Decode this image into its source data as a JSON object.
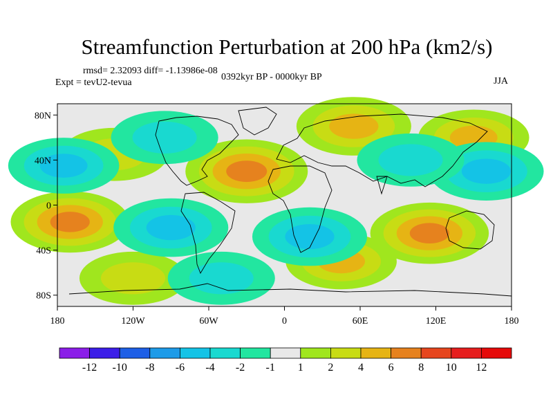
{
  "header": {
    "title": "Streamfunction Perturbation at 200 hPa (km2/s)",
    "stats": "rmsd= 2.32093 diff= -1.13986e-08",
    "experiment": "Expt = tevU2-tevua",
    "period": "0392kyr BP - 0000kyr BP",
    "season": "JJA"
  },
  "chart_data": {
    "type": "heatmap",
    "title": "Streamfunction Perturbation at 200 hPa (km2/s)",
    "xlabel": "",
    "ylabel": "",
    "x_range": [
      -180,
      180
    ],
    "y_range": [
      -90,
      90
    ],
    "x_ticks": [
      -180,
      -120,
      -60,
      0,
      60,
      120,
      180
    ],
    "x_tick_labels": [
      "180",
      "120W",
      "60W",
      "0",
      "60E",
      "120E",
      "180"
    ],
    "y_ticks": [
      80,
      40,
      0,
      -40,
      -80
    ],
    "y_tick_labels": [
      "80N",
      "40N",
      "0",
      "40S",
      "80S"
    ],
    "colorbar": {
      "levels": [
        -12,
        -10,
        -8,
        -6,
        -4,
        -2,
        -1,
        1,
        2,
        4,
        6,
        8,
        10,
        12
      ],
      "labels": [
        "-12",
        "-10",
        "-8",
        "-6",
        "-4",
        "-2",
        "-1",
        "1",
        "2",
        "4",
        "6",
        "8",
        "10",
        "12"
      ],
      "colors": [
        "#8b1ee8",
        "#3c1ee8",
        "#1e5fe6",
        "#1e9be8",
        "#14c3e6",
        "#19d9d0",
        "#22e6a0",
        "#e8e8e8",
        "#a0e61e",
        "#c8dc14",
        "#e6b414",
        "#e6821e",
        "#e6461e",
        "#e61e1e",
        "#e60a0a"
      ]
    },
    "field_features": [
      {
        "lon": -30,
        "lat": 30,
        "value": 7,
        "kind": "high"
      },
      {
        "lon": -170,
        "lat": -15,
        "value": 6,
        "kind": "high"
      },
      {
        "lon": 115,
        "lat": -25,
        "value": 6,
        "kind": "high"
      },
      {
        "lon": 55,
        "lat": 70,
        "value": 5,
        "kind": "high"
      },
      {
        "lon": 150,
        "lat": 60,
        "value": 4,
        "kind": "high"
      },
      {
        "lon": 45,
        "lat": -50,
        "value": 4,
        "kind": "high"
      },
      {
        "lon": -120,
        "lat": -65,
        "value": 3,
        "kind": "high"
      },
      {
        "lon": -135,
        "lat": 45,
        "value": 3,
        "kind": "high"
      },
      {
        "lon": -90,
        "lat": -20,
        "value": -5,
        "kind": "low"
      },
      {
        "lon": 20,
        "lat": -28,
        "value": -5,
        "kind": "low"
      },
      {
        "lon": 160,
        "lat": 30,
        "value": -5,
        "kind": "low"
      },
      {
        "lon": -175,
        "lat": 35,
        "value": -4,
        "kind": "low"
      },
      {
        "lon": -50,
        "lat": -65,
        "value": -3,
        "kind": "low"
      },
      {
        "lon": -95,
        "lat": 60,
        "value": -3,
        "kind": "low"
      },
      {
        "lon": 100,
        "lat": 40,
        "value": -3,
        "kind": "low"
      }
    ]
  }
}
